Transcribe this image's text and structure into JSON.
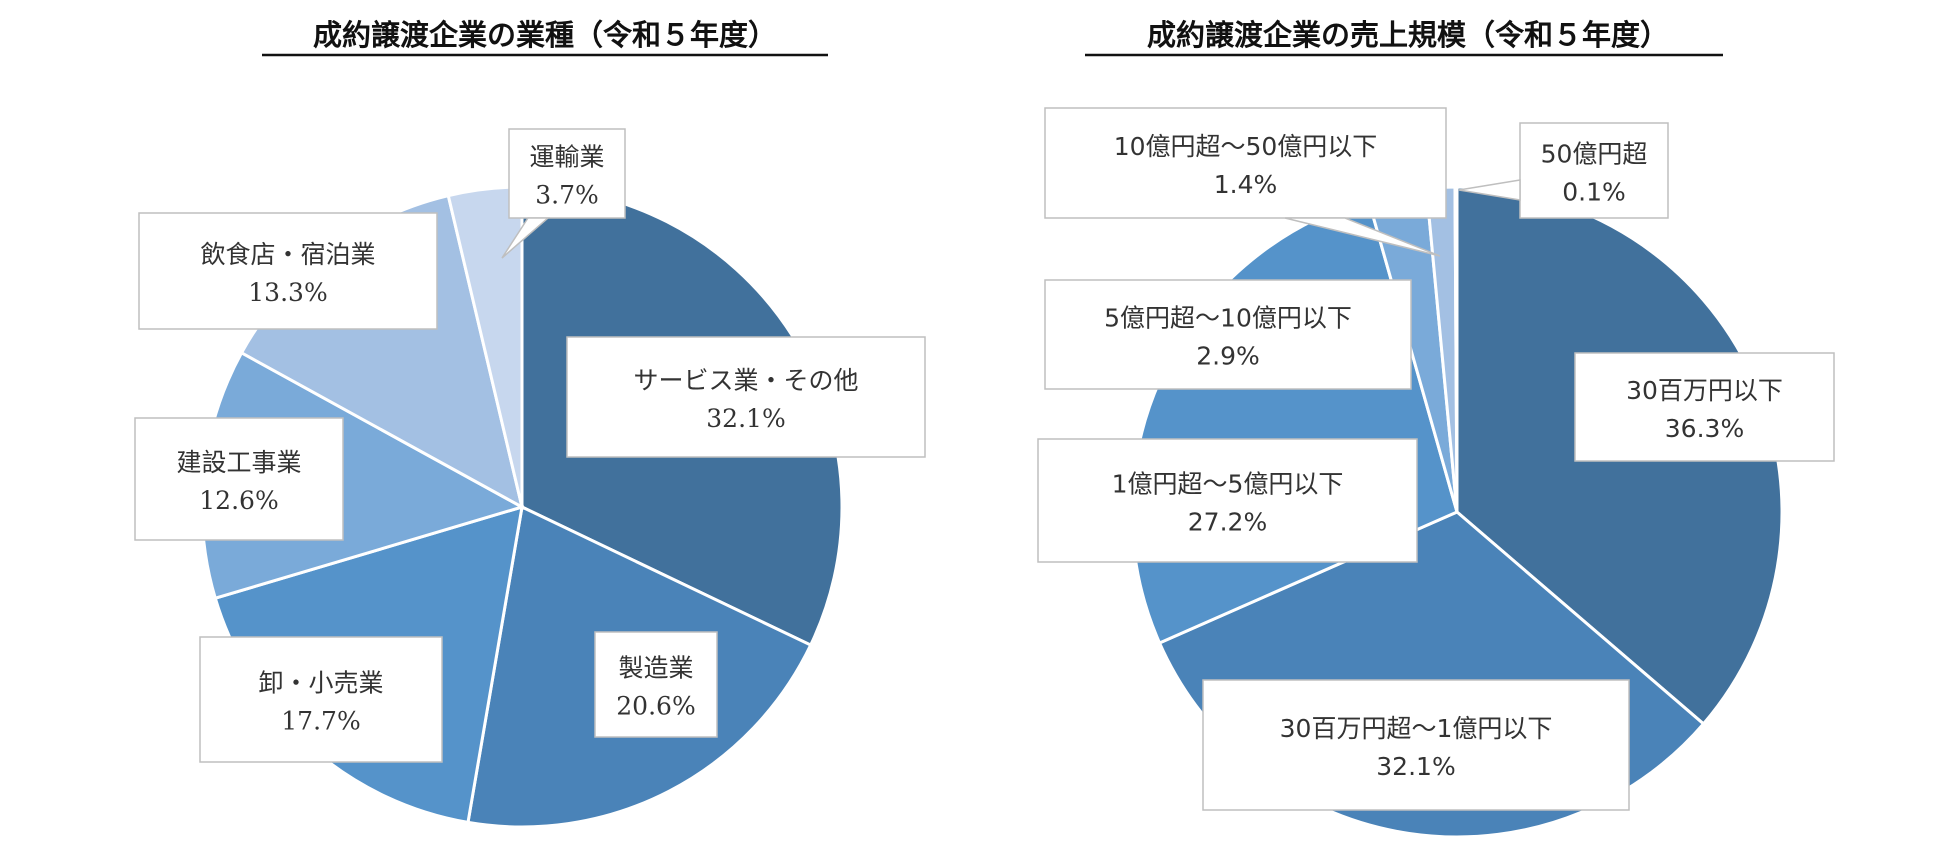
{
  "chart_data": [
    {
      "type": "pie",
      "title": "成約譲渡企業の業種（令和５年度）",
      "slices": [
        {
          "label": "サービス業・その他",
          "value_text": "32.1%",
          "value": 32.1,
          "color": "#41719c"
        },
        {
          "label": "製造業",
          "value_text": "20.6%",
          "value": 20.6,
          "color": "#4a83b8"
        },
        {
          "label": "卸・小売業",
          "value_text": "17.7%",
          "value": 17.7,
          "color": "#5593ca"
        },
        {
          "label": "建設工事業",
          "value_text": "12.6%",
          "value": 12.6,
          "color": "#7aaad9"
        },
        {
          "label": "飲食店・宿泊業",
          "value_text": "13.3%",
          "value": 13.3,
          "color": "#a3c0e3"
        },
        {
          "label": "運輸業",
          "value_text": "3.7%",
          "value": 3.7,
          "color": "#c7d7ee"
        }
      ]
    },
    {
      "type": "pie",
      "title": "成約譲渡企業の売上規模（令和５年度）",
      "slices": [
        {
          "label": "30百万円以下",
          "value_text": "36.3%",
          "value": 36.3,
          "color": "#41719c"
        },
        {
          "label": "30百万円超～1億円以下",
          "value_text": "32.1%",
          "value": 32.1,
          "color": "#4a83b8"
        },
        {
          "label": "1億円超～5億円以下",
          "value_text": "27.2%",
          "value": 27.2,
          "color": "#5593ca"
        },
        {
          "label": "5億円超～10億円以下",
          "value_text": "2.9%",
          "value": 2.9,
          "color": "#7aaad9"
        },
        {
          "label": "10億円超～50億円以下",
          "value_text": "1.4%",
          "value": 1.4,
          "color": "#a3c0e3"
        },
        {
          "label": "50億円超",
          "value_text": "0.1%",
          "value": 0.1,
          "color": "#c7d7ee"
        }
      ]
    }
  ]
}
